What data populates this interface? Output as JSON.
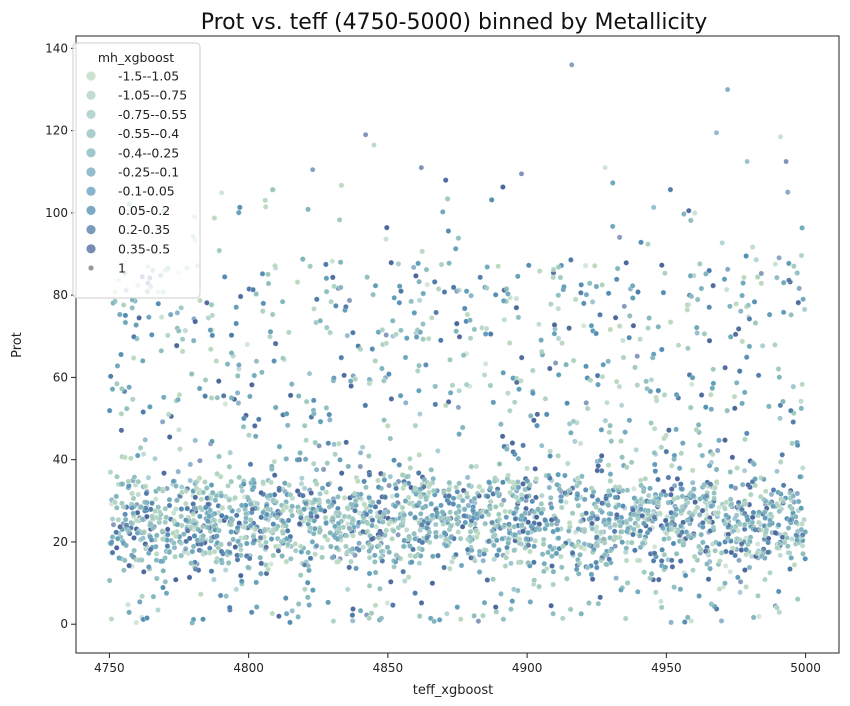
{
  "chart_data": {
    "type": "scatter",
    "title": "Prot vs. teff (4750-5000) binned by Metallicity",
    "xlabel": "teff_xgboost",
    "ylabel": "Prot",
    "xlim": [
      4738,
      5012
    ],
    "ylim": [
      -7,
      143
    ],
    "xticks": [
      4750,
      4800,
      4850,
      4900,
      4950,
      5000
    ],
    "yticks": [
      0,
      20,
      40,
      60,
      80,
      100,
      120,
      140
    ],
    "grid": false,
    "legend": {
      "title": "mh_xgboost",
      "placement": "top-left",
      "entries": [
        {
          "label": "-1.5--1.05",
          "color": "#bcd9c2"
        },
        {
          "label": "-1.05--0.75",
          "color": "#aed2c0"
        },
        {
          "label": "-0.75--0.55",
          "color": "#9ec9bf"
        },
        {
          "label": "-0.55--0.4",
          "color": "#8fbfbe"
        },
        {
          "label": "-0.4--0.25",
          "color": "#7fb4bd"
        },
        {
          "label": "-0.25--0.1",
          "color": "#6fa8bb"
        },
        {
          "label": "-0.1-0.05",
          "color": "#5f9cb7"
        },
        {
          "label": "0.05-0.2",
          "color": "#538cb2"
        },
        {
          "label": "0.2-0.35",
          "color": "#4d7aa7"
        },
        {
          "label": "0.35-0.5",
          "color": "#49669a"
        },
        {
          "label": "1",
          "color": "#777777"
        }
      ]
    },
    "outliers": [
      {
        "x": 4916,
        "y": 136
      },
      {
        "x": 4972,
        "y": 130
      },
      {
        "x": 4968,
        "y": 119.5
      },
      {
        "x": 4842,
        "y": 119
      },
      {
        "x": 4845,
        "y": 116.5
      },
      {
        "x": 4991,
        "y": 118.5
      },
      {
        "x": 4993,
        "y": 112.5
      },
      {
        "x": 4979,
        "y": 112.5
      },
      {
        "x": 4928,
        "y": 111
      },
      {
        "x": 4862,
        "y": 111
      },
      {
        "x": 4823,
        "y": 110.5
      },
      {
        "x": 4898,
        "y": 109.5
      }
    ],
    "density": {
      "point_count_estimate": 9000,
      "dense_band": [
        15,
        35
      ],
      "core_value": 25
    }
  }
}
